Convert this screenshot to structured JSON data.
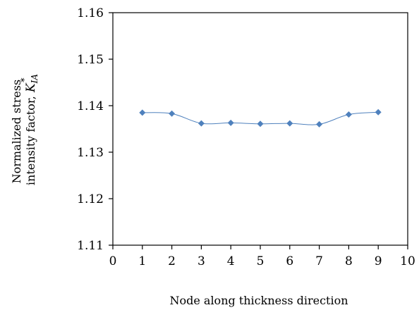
{
  "chart_data": {
    "type": "line",
    "title": "",
    "xlabel": "Node along thickness direction",
    "ylabel": {
      "line1": "Normalized stress",
      "line2_text": "intensity factor, ",
      "symbol": "K",
      "subscript": "IA",
      "superscript": "*"
    },
    "xlim": [
      0,
      10
    ],
    "ylim": [
      1.11,
      1.16
    ],
    "xticks": [
      0,
      1,
      2,
      3,
      4,
      5,
      6,
      7,
      8,
      9,
      10
    ],
    "xtick_labels": [
      "0",
      "1",
      "2",
      "3",
      "4",
      "5",
      "6",
      "7",
      "8",
      "9",
      "10"
    ],
    "yticks": [
      1.11,
      1.12,
      1.13,
      1.14,
      1.15,
      1.16
    ],
    "ytick_labels": [
      "1.11",
      "1.12",
      "1.13",
      "1.14",
      "1.15",
      "1.16"
    ],
    "grid": false,
    "legend": "none",
    "series": [
      {
        "color": "#4F81BD",
        "marker": "diamond",
        "smooth": true,
        "x": [
          1,
          2,
          3,
          4,
          5,
          6,
          7,
          8,
          9
        ],
        "y": [
          1.1385,
          1.1383,
          1.1362,
          1.1363,
          1.1361,
          1.1362,
          1.136,
          1.1381,
          1.1386
        ]
      }
    ]
  }
}
